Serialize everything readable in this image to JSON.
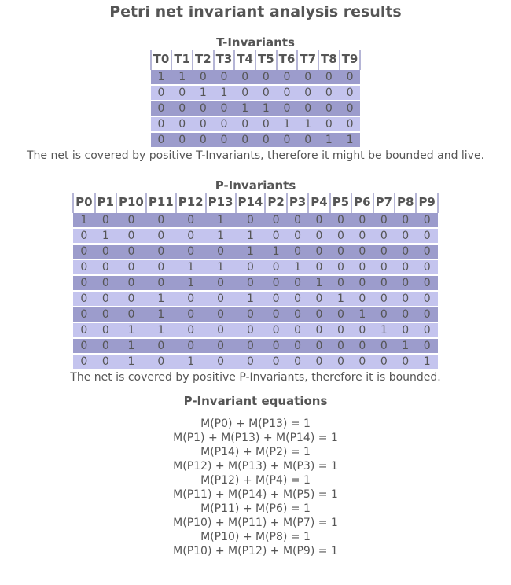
{
  "title": "Petri net invariant analysis results",
  "t_invariants": {
    "heading": "T-Invariants",
    "columns": [
      "T0",
      "T1",
      "T2",
      "T3",
      "T4",
      "T5",
      "T6",
      "T7",
      "T8",
      "T9"
    ],
    "rows": [
      [
        1,
        1,
        0,
        0,
        0,
        0,
        0,
        0,
        0,
        0
      ],
      [
        0,
        0,
        1,
        1,
        0,
        0,
        0,
        0,
        0,
        0
      ],
      [
        0,
        0,
        0,
        0,
        1,
        1,
        0,
        0,
        0,
        0
      ],
      [
        0,
        0,
        0,
        0,
        0,
        0,
        1,
        1,
        0,
        0
      ],
      [
        0,
        0,
        0,
        0,
        0,
        0,
        0,
        0,
        1,
        1
      ]
    ],
    "note": "The net is covered by positive T-Invariants, therefore it might be bounded and live."
  },
  "p_invariants": {
    "heading": "P-Invariants",
    "columns": [
      "P0",
      "P1",
      "P10",
      "P11",
      "P12",
      "P13",
      "P14",
      "P2",
      "P3",
      "P4",
      "P5",
      "P6",
      "P7",
      "P8",
      "P9"
    ],
    "rows": [
      [
        1,
        0,
        0,
        0,
        0,
        1,
        0,
        0,
        0,
        0,
        0,
        0,
        0,
        0,
        0
      ],
      [
        0,
        1,
        0,
        0,
        0,
        1,
        1,
        0,
        0,
        0,
        0,
        0,
        0,
        0,
        0
      ],
      [
        0,
        0,
        0,
        0,
        0,
        0,
        1,
        1,
        0,
        0,
        0,
        0,
        0,
        0,
        0
      ],
      [
        0,
        0,
        0,
        0,
        1,
        1,
        0,
        0,
        1,
        0,
        0,
        0,
        0,
        0,
        0
      ],
      [
        0,
        0,
        0,
        0,
        1,
        0,
        0,
        0,
        0,
        1,
        0,
        0,
        0,
        0,
        0
      ],
      [
        0,
        0,
        0,
        1,
        0,
        0,
        1,
        0,
        0,
        0,
        1,
        0,
        0,
        0,
        0
      ],
      [
        0,
        0,
        0,
        1,
        0,
        0,
        0,
        0,
        0,
        0,
        0,
        1,
        0,
        0,
        0
      ],
      [
        0,
        0,
        1,
        1,
        0,
        0,
        0,
        0,
        0,
        0,
        0,
        0,
        1,
        0,
        0
      ],
      [
        0,
        0,
        1,
        0,
        0,
        0,
        0,
        0,
        0,
        0,
        0,
        0,
        0,
        1,
        0
      ],
      [
        0,
        0,
        1,
        0,
        1,
        0,
        0,
        0,
        0,
        0,
        0,
        0,
        0,
        0,
        1
      ]
    ],
    "note": "The net is covered by positive P-Invariants, therefore it is bounded."
  },
  "equations": {
    "heading": "P-Invariant equations",
    "items": [
      "M(P0) + M(P13) = 1",
      "M(P1) + M(P13) + M(P14) = 1",
      "M(P14) + M(P2) = 1",
      "M(P12) + M(P13) + M(P3) = 1",
      "M(P12) + M(P4) = 1",
      "M(P11) + M(P14) + M(P5) = 1",
      "M(P11) + M(P6) = 1",
      "M(P10) + M(P11) + M(P7) = 1",
      "M(P10) + M(P8) = 1",
      "M(P10) + M(P12) + M(P9) = 1"
    ]
  }
}
